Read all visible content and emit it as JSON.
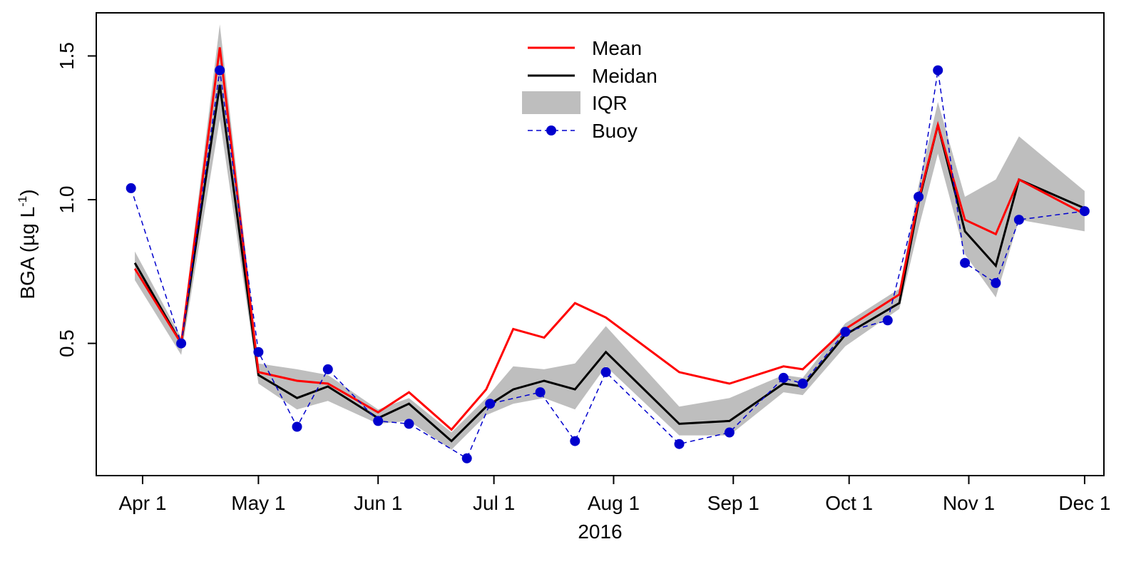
{
  "chart_data": {
    "type": "line",
    "title": "",
    "xlabel": "2016",
    "ylabel": "BGA (µg L",
    "ylabel_sup": "-1",
    "ylabel_close": ")",
    "xlim": [
      "2016-03-20",
      "2016-12-06"
    ],
    "ylim": [
      0.04,
      1.65
    ],
    "grid": false,
    "legend_position": "top-center",
    "x_ticks": [
      {
        "date": "2016-04-01",
        "label": "Apr 1"
      },
      {
        "date": "2016-05-01",
        "label": "May 1"
      },
      {
        "date": "2016-06-01",
        "label": "Jun 1"
      },
      {
        "date": "2016-07-01",
        "label": "Jul 1"
      },
      {
        "date": "2016-08-01",
        "label": "Aug 1"
      },
      {
        "date": "2016-09-01",
        "label": "Sep 1"
      },
      {
        "date": "2016-10-01",
        "label": "Oct 1"
      },
      {
        "date": "2016-11-01",
        "label": "Nov 1"
      },
      {
        "date": "2016-12-01",
        "label": "Dec 1"
      }
    ],
    "y_ticks": [
      {
        "value": 0.5,
        "label": "0.5"
      },
      {
        "value": 1.0,
        "label": "1.0"
      },
      {
        "value": 1.5,
        "label": "1.5"
      }
    ],
    "legend": [
      {
        "key": "mean",
        "label": "Mean"
      },
      {
        "key": "median",
        "label": "Meidan"
      },
      {
        "key": "iqr",
        "label": "IQR"
      },
      {
        "key": "buoy",
        "label": "Buoy"
      }
    ],
    "colors": {
      "mean": "#ff0000",
      "median": "#000000",
      "iqr": "#bebebe",
      "buoy": "#0000cd"
    },
    "model_dates": [
      "2016-03-30",
      "2016-04-11",
      "2016-04-21",
      "2016-05-01",
      "2016-05-11",
      "2016-05-19",
      "2016-06-01",
      "2016-06-09",
      "2016-06-20",
      "2016-06-29",
      "2016-07-06",
      "2016-07-14",
      "2016-07-22",
      "2016-07-30",
      "2016-08-18",
      "2016-08-31",
      "2016-09-14",
      "2016-09-19",
      "2016-09-30",
      "2016-10-14",
      "2016-10-19",
      "2016-10-24",
      "2016-10-31",
      "2016-11-08",
      "2016-11-14",
      "2016-12-01"
    ],
    "series": [
      {
        "key": "mean",
        "values": [
          0.76,
          0.5,
          1.53,
          0.4,
          0.37,
          0.36,
          0.26,
          0.33,
          0.2,
          0.34,
          0.55,
          0.52,
          0.64,
          0.59,
          0.4,
          0.36,
          0.42,
          0.41,
          0.55,
          0.67,
          1.0,
          1.26,
          0.93,
          0.88,
          1.07,
          0.95
        ]
      },
      {
        "key": "median",
        "values": [
          0.78,
          0.5,
          1.4,
          0.39,
          0.31,
          0.35,
          0.24,
          0.29,
          0.16,
          0.28,
          0.34,
          0.37,
          0.34,
          0.47,
          0.22,
          0.23,
          0.36,
          0.35,
          0.53,
          0.64,
          0.99,
          1.26,
          0.89,
          0.77,
          1.07,
          0.97
        ]
      },
      {
        "key": "iqr_low",
        "values": [
          0.72,
          0.46,
          1.28,
          0.36,
          0.27,
          0.3,
          0.22,
          0.23,
          0.13,
          0.25,
          0.29,
          0.31,
          0.27,
          0.42,
          0.18,
          0.18,
          0.33,
          0.32,
          0.49,
          0.62,
          0.9,
          1.16,
          0.81,
          0.66,
          0.93,
          0.89
        ]
      },
      {
        "key": "iqr_high",
        "values": [
          0.82,
          0.52,
          1.61,
          0.43,
          0.41,
          0.39,
          0.27,
          0.31,
          0.19,
          0.31,
          0.42,
          0.41,
          0.43,
          0.56,
          0.28,
          0.31,
          0.39,
          0.38,
          0.57,
          0.69,
          1.05,
          1.34,
          1.01,
          1.07,
          1.22,
          1.03
        ]
      }
    ],
    "buoy": {
      "dates": [
        "2016-03-29",
        "2016-04-11",
        "2016-04-21",
        "2016-05-01",
        "2016-05-11",
        "2016-05-19",
        "2016-06-01",
        "2016-06-09",
        "2016-06-24",
        "2016-06-30",
        "2016-07-13",
        "2016-07-22",
        "2016-07-30",
        "2016-08-18",
        "2016-08-31",
        "2016-09-14",
        "2016-09-19",
        "2016-09-30",
        "2016-10-11",
        "2016-10-19",
        "2016-10-24",
        "2016-10-31",
        "2016-11-08",
        "2016-11-14",
        "2016-12-01"
      ],
      "values": [
        1.04,
        0.5,
        1.45,
        0.47,
        0.21,
        0.41,
        0.23,
        0.22,
        0.1,
        0.29,
        0.33,
        0.16,
        0.4,
        0.15,
        0.19,
        0.38,
        0.36,
        0.54,
        0.58,
        1.01,
        1.45,
        0.78,
        0.71,
        0.93,
        0.96
      ]
    }
  }
}
